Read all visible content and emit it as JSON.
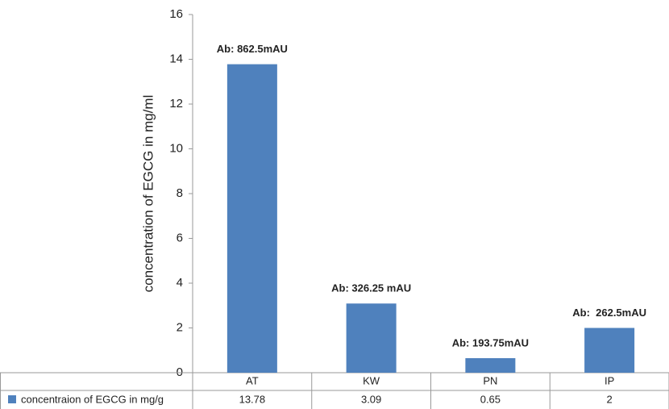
{
  "chart_data": {
    "type": "bar",
    "y_label": "concentration of EGCG in mg/ml",
    "categories": [
      "AT",
      "KW",
      "PN",
      "IP"
    ],
    "series": [
      {
        "name": "concentraion of EGCG in mg/g",
        "color": "#4f81bd",
        "values": [
          13.78,
          3.09,
          0.65,
          2
        ]
      }
    ],
    "annotations": [
      "Ab: 862.5mAU",
      "Ab: 326.25 mAU",
      "Ab: 193.75mAU",
      "Ab:  262.5mAU"
    ],
    "ylim": [
      0,
      16
    ],
    "yticks": [
      0,
      2,
      4,
      6,
      8,
      10,
      12,
      14,
      16
    ],
    "grid": false
  }
}
